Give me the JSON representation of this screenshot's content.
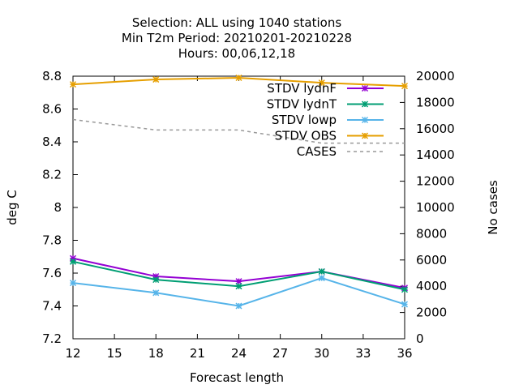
{
  "chart_data": {
    "type": "line",
    "title_lines": [
      "Selection: ALL using  1040 stations",
      "Min T2m   Period: 20210201-20210228",
      "Hours:  00,06,12,18"
    ],
    "xlabel": "Forecast length",
    "ylabel": "deg C",
    "y2label": "No cases",
    "xlim": [
      12,
      36
    ],
    "ylim": [
      7.2,
      8.8
    ],
    "y2lim": [
      0,
      20000
    ],
    "x_ticks": [
      "12",
      "15",
      "18",
      "21",
      "24",
      "27",
      "30",
      "33",
      "36"
    ],
    "y_ticks": [
      "7.2",
      "7.4",
      "7.6",
      "7.8",
      "8",
      "8.2",
      "8.4",
      "8.6",
      "8.8"
    ],
    "y2_ticks": [
      "0",
      "2000",
      "4000",
      "6000",
      "8000",
      "10000",
      "12000",
      "14000",
      "16000",
      "18000",
      "20000"
    ],
    "grid": false,
    "legend_position": "top-right",
    "x": [
      12,
      18,
      24,
      30,
      36
    ],
    "series": [
      {
        "name": "STDV lydnF",
        "axis": "y",
        "color": "#9400d3",
        "marker": "x",
        "dash": "",
        "values": [
          7.69,
          7.58,
          7.55,
          7.61,
          7.51
        ]
      },
      {
        "name": "STDV lydnT",
        "axis": "y",
        "color": "#009e73",
        "marker": "x",
        "dash": "",
        "values": [
          7.67,
          7.56,
          7.52,
          7.61,
          7.5
        ]
      },
      {
        "name": "STDV lowp",
        "axis": "y",
        "color": "#56b4e9",
        "marker": "x",
        "dash": "",
        "values": [
          7.54,
          7.48,
          7.4,
          7.57,
          7.41
        ]
      },
      {
        "name": "STDV OBS",
        "axis": "y",
        "color": "#e69f00",
        "marker": "x",
        "dash": "",
        "values": [
          8.75,
          8.78,
          8.79,
          8.76,
          8.74
        ]
      },
      {
        "name": "CASES",
        "axis": "y2",
        "color": "#999999",
        "marker": "",
        "dash": "4,4",
        "values": [
          16700,
          15900,
          15900,
          14900,
          14900
        ]
      }
    ]
  }
}
